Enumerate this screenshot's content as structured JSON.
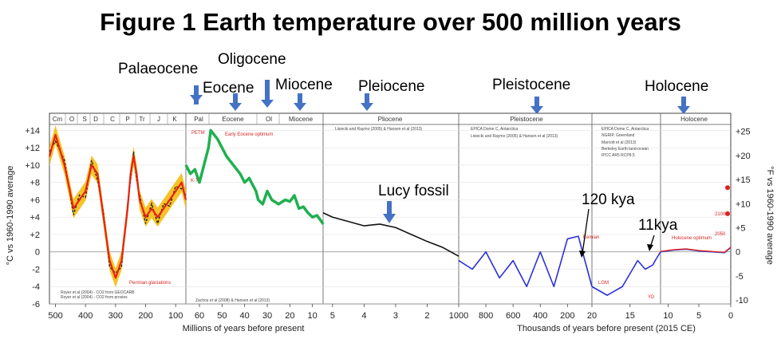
{
  "title": "Figure 1 Earth temperature over 500 million years",
  "colors": {
    "phanerozoic": "#f5b800",
    "phan_line": "#e8201a",
    "cenozoic": "#20b050",
    "pliocene": "#111111",
    "pleistocene": "#2b2fd8",
    "holocene": "#2255ee",
    "marcott": "#e02020",
    "arrow": "#4472c4"
  },
  "annotations": {
    "palaeocene": "Palaeocene",
    "eocene": "Eocene",
    "oligocene": "Oligocene",
    "miocene": "Miocene",
    "pleiocene": "Pleiocene",
    "pleistocene": "Pleistocene",
    "holocene": "Holocene",
    "lucy": "Lucy fossil",
    "kya120": "120 kya",
    "kya11": "11kya"
  },
  "chart_data": {
    "type": "line",
    "ylabel_left": "°C vs 1960-1990 average",
    "ylabel_right": "°F vs 1960-1990 average",
    "ylim": [
      -6,
      15
    ],
    "yticks_left": [
      "+14",
      "+12",
      "+10",
      "+8",
      "+6",
      "+4",
      "+2",
      "0",
      "-2",
      "-4",
      "-6"
    ],
    "yticks_right": [
      "+25",
      "+20",
      "+15",
      "+10",
      "+5",
      "0",
      "-5",
      "-10"
    ],
    "x_axis_label_1": "Millions of years before present",
    "x_axis_label_2": "Thousands of years before present (2015 CE)",
    "panels": [
      {
        "era_labels": [
          "Cm",
          "O",
          "S",
          "D",
          "C",
          "P",
          "Tr",
          "J",
          "K"
        ],
        "xticks": [
          "500",
          "400",
          "300",
          "200",
          "100"
        ]
      },
      {
        "era_labels": [
          "Pal",
          "Eocene",
          "Ol",
          "Miocene"
        ],
        "xticks": [
          "60",
          "50",
          "40",
          "30",
          "20",
          "10"
        ]
      },
      {
        "era_labels": [
          "Pliocene"
        ],
        "xticks": [
          "5",
          "4",
          "3",
          "2"
        ]
      },
      {
        "era_labels": [
          "Pleistocene"
        ],
        "xticks": [
          "1000",
          "800",
          "600",
          "400",
          "200"
        ]
      },
      {
        "era_labels": [],
        "xticks": [
          "20",
          "15",
          "10"
        ]
      },
      {
        "era_labels": [
          "Holocene"
        ],
        "xticks": [
          "5",
          "0"
        ]
      }
    ],
    "series": [
      {
        "key": "phanerozoic",
        "x": [
          520,
          500,
          470,
          440,
          420,
          400,
          380,
          360,
          340,
          320,
          300,
          280,
          260,
          250,
          240,
          230,
          220,
          200,
          180,
          160,
          140,
          120,
          100,
          80,
          66
        ],
        "y": [
          11,
          13.5,
          10,
          5,
          6,
          7,
          10,
          9,
          4,
          -1,
          -3,
          -1,
          5,
          9,
          11,
          9,
          6,
          4,
          5,
          4,
          5,
          6,
          7,
          8,
          6
        ]
      },
      {
        "key": "cenozoic",
        "x": [
          66,
          64,
          62,
          60,
          58,
          56,
          55,
          52,
          50,
          48,
          45,
          42,
          40,
          38,
          35,
          34,
          32,
          30,
          28,
          25,
          22,
          20,
          18,
          16,
          14,
          12,
          10,
          8,
          6,
          5.3
        ],
        "y": [
          10,
          9,
          9.5,
          8,
          10,
          12,
          14,
          13,
          12,
          11,
          10,
          9,
          8,
          8.5,
          7,
          6,
          5.5,
          7,
          6,
          5.5,
          6,
          5.8,
          6.5,
          5,
          5.2,
          4.5,
          4,
          4.2,
          3.5,
          3.2
        ]
      },
      {
        "key": "pliocene",
        "x": [
          5.3,
          5,
          4.5,
          4,
          3.5,
          3,
          2.5,
          2,
          1.5,
          1
        ],
        "y": [
          4.5,
          4,
          3.5,
          3,
          3.2,
          2.8,
          2,
          1.2,
          0.5,
          -0.5
        ]
      },
      {
        "key": "pleistocene",
        "x": [
          1000,
          900,
          800,
          700,
          600,
          500,
          400,
          300,
          200,
          120,
          20
        ],
        "y": [
          -1,
          -2,
          0,
          -3,
          -1,
          -4,
          0,
          -4,
          1.5,
          1.8,
          -4
        ]
      },
      {
        "key": "deglaciation",
        "x": [
          20,
          18,
          16,
          14,
          13,
          12,
          11.7,
          11
        ],
        "y": [
          -4,
          -5,
          -4,
          -1,
          -2,
          -1.5,
          -1,
          0
        ]
      },
      {
        "key": "holocene",
        "x": [
          11,
          9,
          7,
          5,
          3,
          1,
          0
        ],
        "y": [
          0,
          0.2,
          0.3,
          0.1,
          0,
          -0.1,
          0.5
        ]
      }
    ],
    "legend_texts": [
      "Royer et al (2004) - CO2 from GEOCARB",
      "Royer et al (2004) - CO2 from proxies",
      "Zachos et al (2008) & Hansen et al (2013)",
      "Lisiecki and Raymo (2005) & Hansen et al (2013)",
      "EPICA Dome C, Antarctica",
      "NGRIP, Greenland",
      "Marcott et al (2013)",
      "Berkeley Earth land-ocean",
      "IPCC AR5 RCP8.5"
    ],
    "red_annotations": [
      "Permian glaciations",
      "PETM",
      "Early Eocene optimum",
      "K-T",
      "Eemian",
      "LGM",
      "YD",
      "Holocene optimum",
      "2100",
      "2050"
    ]
  }
}
